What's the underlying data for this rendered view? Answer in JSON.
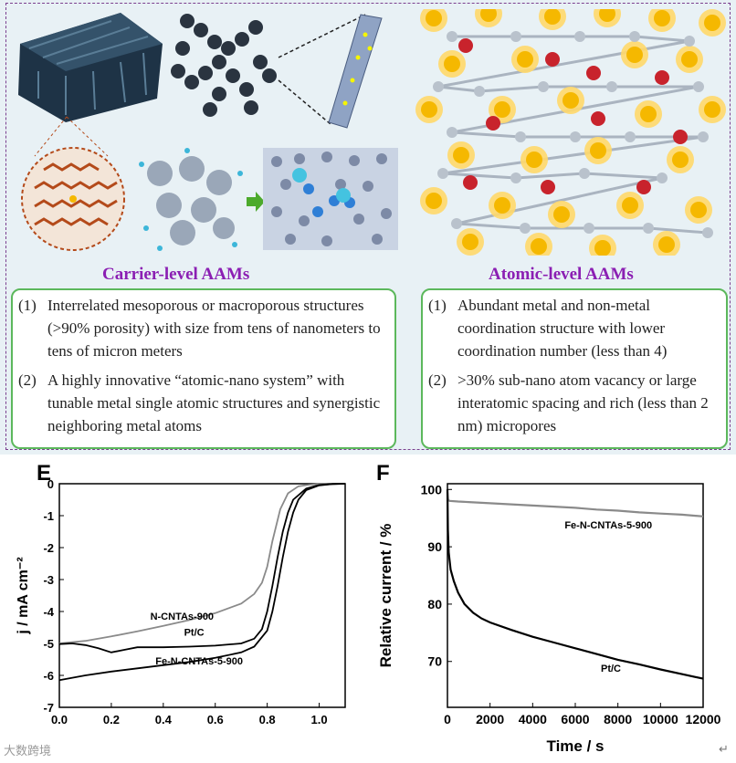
{
  "carrier": {
    "title": "Carrier-level AAMs",
    "items": [
      {
        "num": "(1)",
        "text": "Interrelated mesoporous or macroporous structures (>90% porosity) with size from tens of nanometers to tens of micron meters"
      },
      {
        "num": "(2)",
        "text": "A highly innovative “atomic-nano system” with tunable metal single atomic structures and synergistic neighboring metal atoms"
      }
    ]
  },
  "atomic": {
    "title": "Atomic-level AAMs",
    "items": [
      {
        "num": "(1)",
        "text": "Abundant metal and non-metal coordination structure with lower coordination number (less than 4)"
      },
      {
        "num": "(2)",
        "text": ">30% sub-nano  atom vacancy or large interatomic spacing and rich (less than 2 nm) micropores"
      }
    ]
  },
  "watermark": "大数跨境",
  "return_mark": "↵",
  "colors": {
    "title": "#8b1fb3",
    "box_border": "#5cb85c",
    "metal_atom": "#f5b800",
    "red_atom": "#c8232c",
    "carbon": "#b44a1a"
  },
  "chart_data": [
    {
      "panel": "E",
      "type": "line",
      "xlabel": "",
      "ylabel": "j / mA cm⁻²",
      "xlim": [
        0.0,
        1.1
      ],
      "ylim": [
        -7,
        0
      ],
      "xticks": [
        "0.0",
        "0.2",
        "0.4",
        "0.6",
        "0.8",
        "1.0"
      ],
      "yticks": [
        "0",
        "-1",
        "-2",
        "-3",
        "-4",
        "-5",
        "-6",
        "-7"
      ],
      "series": [
        {
          "name": "N-CNTAs-900",
          "color": "#8a8a8a",
          "x": [
            0.0,
            0.1,
            0.2,
            0.3,
            0.4,
            0.5,
            0.6,
            0.7,
            0.75,
            0.78,
            0.8,
            0.82,
            0.85,
            0.88,
            0.92,
            0.96,
            1.0,
            1.05,
            1.1
          ],
          "y": [
            -5.0,
            -4.92,
            -4.78,
            -4.62,
            -4.45,
            -4.27,
            -4.05,
            -3.75,
            -3.45,
            -3.1,
            -2.6,
            -1.8,
            -0.8,
            -0.3,
            -0.08,
            -0.03,
            -0.01,
            0.0,
            0.0
          ]
        },
        {
          "name": "Pt/C",
          "color": "#000000",
          "x": [
            0.0,
            0.05,
            0.1,
            0.15,
            0.2,
            0.25,
            0.3,
            0.4,
            0.5,
            0.6,
            0.7,
            0.75,
            0.78,
            0.8,
            0.82,
            0.84,
            0.86,
            0.88,
            0.9,
            0.95,
            1.0,
            1.05,
            1.1
          ],
          "y": [
            -5.02,
            -5.0,
            -5.05,
            -5.15,
            -5.28,
            -5.2,
            -5.12,
            -5.12,
            -5.1,
            -5.07,
            -5.0,
            -4.85,
            -4.55,
            -4.0,
            -3.2,
            -2.3,
            -1.5,
            -0.9,
            -0.5,
            -0.15,
            -0.04,
            -0.01,
            0.0
          ]
        },
        {
          "name": "Fe-N-CNTAs-5-900",
          "color": "#000000",
          "x": [
            0.0,
            0.1,
            0.2,
            0.3,
            0.4,
            0.5,
            0.6,
            0.7,
            0.75,
            0.8,
            0.82,
            0.84,
            0.86,
            0.88,
            0.9,
            0.92,
            0.95,
            1.0,
            1.05,
            1.1
          ],
          "y": [
            -6.15,
            -6.0,
            -5.88,
            -5.78,
            -5.68,
            -5.58,
            -5.45,
            -5.28,
            -5.1,
            -4.6,
            -4.0,
            -3.2,
            -2.3,
            -1.5,
            -0.9,
            -0.5,
            -0.2,
            -0.05,
            -0.01,
            0.0
          ]
        }
      ],
      "annotations": [
        "N-CNTAs-900",
        "Pt/C",
        "Fe-N-CNTAs-5-900"
      ]
    },
    {
      "panel": "F",
      "type": "line",
      "xlabel": "Time / s",
      "ylabel": "Relative current / %",
      "xlim": [
        0,
        12000
      ],
      "ylim": [
        62,
        101
      ],
      "xticks": [
        "0",
        "2000",
        "4000",
        "6000",
        "8000",
        "10000",
        "12000"
      ],
      "yticks": [
        "70",
        "80",
        "90",
        "100"
      ],
      "series": [
        {
          "name": "Fe-N-CNTAs-5-900",
          "color": "#8a8a8a",
          "x": [
            0,
            30,
            100,
            500,
            1000,
            2000,
            3000,
            4000,
            5000,
            6000,
            7000,
            8000,
            9000,
            10000,
            11000,
            12000
          ],
          "y": [
            99.5,
            98.2,
            98.0,
            97.9,
            97.8,
            97.6,
            97.4,
            97.2,
            97.0,
            96.8,
            96.5,
            96.3,
            96.0,
            95.8,
            95.6,
            95.3
          ]
        },
        {
          "name": "Pt/C",
          "color": "#000000",
          "x": [
            0,
            20,
            60,
            150,
            300,
            500,
            800,
            1200,
            1600,
            2000,
            3000,
            4000,
            5000,
            6000,
            7000,
            8000,
            9000,
            10000,
            11000,
            12000
          ],
          "y": [
            100,
            93,
            89,
            86,
            84,
            82,
            80,
            78.5,
            77.5,
            76.8,
            75.5,
            74.3,
            73.3,
            72.3,
            71.3,
            70.3,
            69.5,
            68.6,
            67.8,
            67.0
          ]
        }
      ],
      "annotations": [
        "Fe-N-CNTAs-5-900",
        "Pt/C"
      ]
    }
  ],
  "charts_text": {
    "E": {
      "letter": "E",
      "ylabel": "j / mA cm⁻²",
      "label_n": "N-CNTAs-900",
      "label_pt": "Pt/C",
      "label_fe": "Fe-N-CNTAs-5-900"
    },
    "F": {
      "letter": "F",
      "ylabel": "Relative current / %",
      "xlabel": "Time / s",
      "label_fe": "Fe-N-CNTAs-5-900",
      "label_pt": "Pt/C"
    }
  }
}
